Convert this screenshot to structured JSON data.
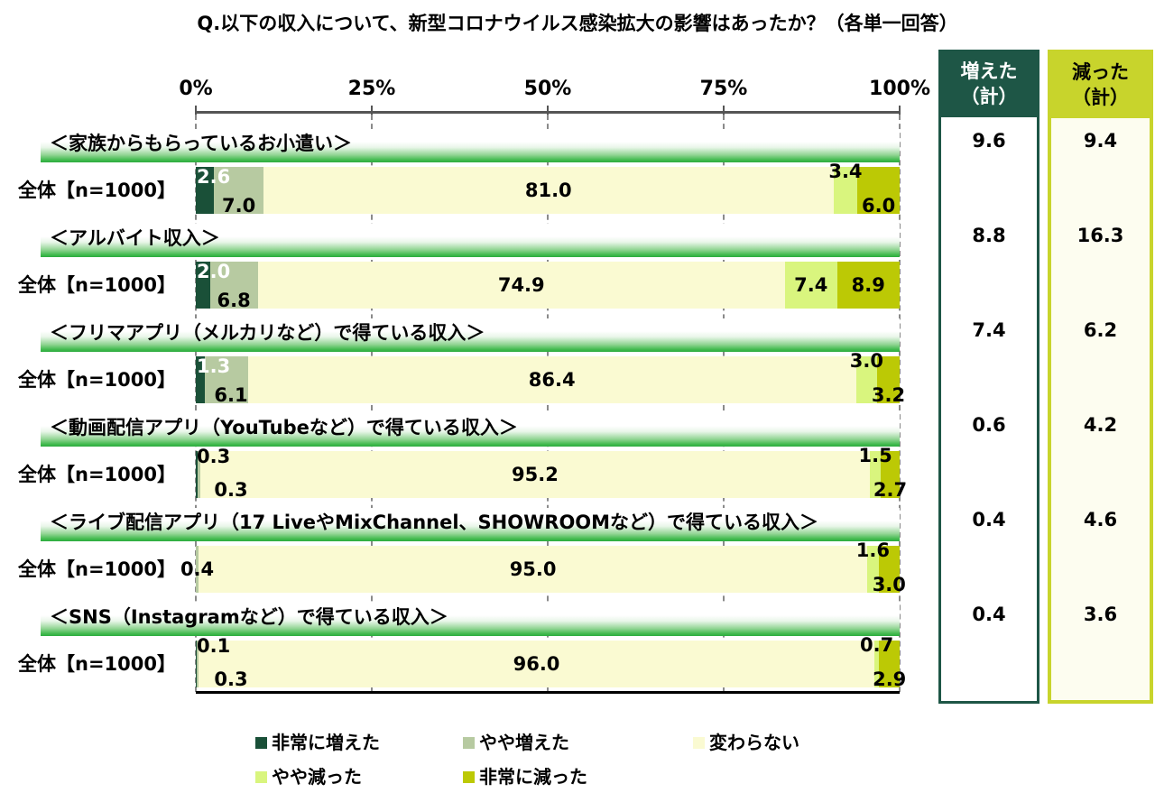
{
  "title": "Q.以下の収入について、新型コロナウイルス感染拡大の影響はあったか？（各単一回答）",
  "axis_ticks": [
    "0%",
    "25%",
    "50%",
    "75%",
    "100%"
  ],
  "sample_label": "全体【n=1000】",
  "colors": {
    "very_increased": "#1A5038",
    "somewhat_increased": "#B7CAA1",
    "unchanged": "#FAFAD2",
    "somewhat_decreased": "#D9F57E",
    "very_decreased": "#BCC905",
    "increase_header_bg": "#1E5646",
    "increase_header_text": "#FFFFFF",
    "decrease_header_bg": "#C8D42C",
    "decrease_header_text": "#000000",
    "band_green": "#2CAB3E",
    "grid": "#8A8A8A"
  },
  "legend": [
    {
      "label": "非常に増えた",
      "color": "#1A5038"
    },
    {
      "label": "やや増えた",
      "color": "#B7CAA1"
    },
    {
      "label": "変わらない",
      "color": "#FAFAD2"
    },
    {
      "label": "やや減った",
      "color": "#D9F57E"
    },
    {
      "label": "非常に減った",
      "color": "#BCC905"
    }
  ],
  "sum_columns": {
    "increase": {
      "header_line1": "増えた",
      "header_line2": "（計）",
      "values": [
        "9.6",
        "8.8",
        "7.4",
        "0.6",
        "0.4",
        "0.4"
      ]
    },
    "decrease": {
      "header_line1": "減った",
      "header_line2": "（計）",
      "values": [
        "9.4",
        "16.3",
        "6.2",
        "4.2",
        "4.6",
        "3.6"
      ]
    }
  },
  "categories": [
    {
      "name": "＜家族からもらっているお小遣い＞",
      "row_label": "全体【n=1000】",
      "values": [
        2.6,
        7.0,
        81.0,
        3.4,
        6.0
      ],
      "labels": [
        "2.6",
        "7.0",
        "81.0",
        "3.4",
        "6.0"
      ],
      "label_pos": [
        "tl",
        "bot",
        "mid",
        "top",
        "bot"
      ],
      "increase_total": "9.6",
      "decrease_total": "9.4"
    },
    {
      "name": "＜アルバイト収入＞",
      "row_label": "全体【n=1000】",
      "values": [
        2.0,
        6.8,
        74.9,
        7.4,
        8.9
      ],
      "labels": [
        "2.0",
        "6.8",
        "74.9",
        "7.4",
        "8.9"
      ],
      "label_pos": [
        "tl",
        "bot",
        "mid",
        "mid",
        "mid"
      ],
      "increase_total": "8.8",
      "decrease_total": "16.3"
    },
    {
      "name": "＜フリマアプリ（メルカリなど）で得ている収入＞",
      "row_label": "全体【n=1000】",
      "values": [
        1.3,
        6.1,
        86.4,
        3.0,
        3.2
      ],
      "labels": [
        "1.3",
        "6.1",
        "86.4",
        "3.0",
        "3.2"
      ],
      "label_pos": [
        "tl",
        "bot",
        "mid",
        "top",
        "bot"
      ],
      "increase_total": "7.4",
      "decrease_total": "6.2"
    },
    {
      "name": "＜動画配信アプリ（YouTubeなど）で得ている収入＞",
      "row_label": "全体【n=1000】",
      "values": [
        0.3,
        0.3,
        95.2,
        1.5,
        2.7
      ],
      "labels": [
        "0.3",
        "0.3",
        "95.2",
        "1.5",
        "2.7"
      ],
      "label_pos": [
        "tl",
        "bot",
        "mid",
        "top",
        "bot"
      ],
      "increase_total": "0.6",
      "decrease_total": "4.2"
    },
    {
      "name": "＜ライブ配信アプリ（17 LiveやMixChannel、SHOWROOMなど）で得ている収入＞",
      "row_label": "全体【n=1000】",
      "values": [
        0.0,
        0.4,
        95.0,
        1.6,
        3.0
      ],
      "labels": [
        "",
        "0.4",
        "95.0",
        "1.6",
        "3.0"
      ],
      "label_pos": [
        "none",
        "mid",
        "mid",
        "top",
        "bot"
      ],
      "increase_total": "0.4",
      "decrease_total": "4.6"
    },
    {
      "name": "＜SNS（Instagramなど）で得ている収入＞",
      "row_label": "全体【n=1000】",
      "values": [
        0.1,
        0.3,
        96.0,
        0.7,
        2.9
      ],
      "labels": [
        "0.1",
        "0.3",
        "96.0",
        "0.7",
        "2.9"
      ],
      "label_pos": [
        "tl",
        "bot",
        "mid",
        "top",
        "bot"
      ],
      "increase_total": "0.4",
      "decrease_total": "3.6"
    }
  ],
  "chart_data": {
    "type": "bar",
    "orientation": "horizontal-stacked",
    "unit": "%",
    "title": "Q.以下の収入について、新型コロナウイルス感染拡大の影響はあったか？（各単一回答）",
    "sample_label": "全体【n=1000】",
    "categories": [
      "＜家族からもらっているお小遣い＞",
      "＜アルバイト収入＞",
      "＜フリマアプリ（メルカリなど）で得ている収入＞",
      "＜動画配信アプリ（YouTubeなど）で得ている収入＞",
      "＜ライブ配信アプリ（17 LiveやMixChannel、SHOWROOMなど）で得ている収入＞",
      "＜SNS（Instagramなど）で得ている収入＞"
    ],
    "series": [
      {
        "name": "非常に増えた",
        "values": [
          2.6,
          2.0,
          1.3,
          0.3,
          0.0,
          0.1
        ]
      },
      {
        "name": "やや増えた",
        "values": [
          7.0,
          6.8,
          6.1,
          0.3,
          0.4,
          0.3
        ]
      },
      {
        "name": "変わらない",
        "values": [
          81.0,
          74.9,
          86.4,
          95.2,
          95.0,
          96.0
        ]
      },
      {
        "name": "やや減った",
        "values": [
          3.4,
          7.4,
          3.0,
          1.5,
          1.6,
          0.7
        ]
      },
      {
        "name": "非常に減った",
        "values": [
          6.0,
          8.9,
          3.2,
          2.7,
          3.0,
          2.9
        ]
      }
    ],
    "increase_totals": [
      9.6,
      8.8,
      7.4,
      0.6,
      0.4,
      0.4
    ],
    "decrease_totals": [
      9.4,
      16.3,
      6.2,
      4.2,
      4.6,
      3.6
    ],
    "xlim": [
      0,
      100
    ],
    "x_ticks": [
      0,
      25,
      50,
      75,
      100
    ],
    "grid": true,
    "legend_position": "bottom"
  }
}
